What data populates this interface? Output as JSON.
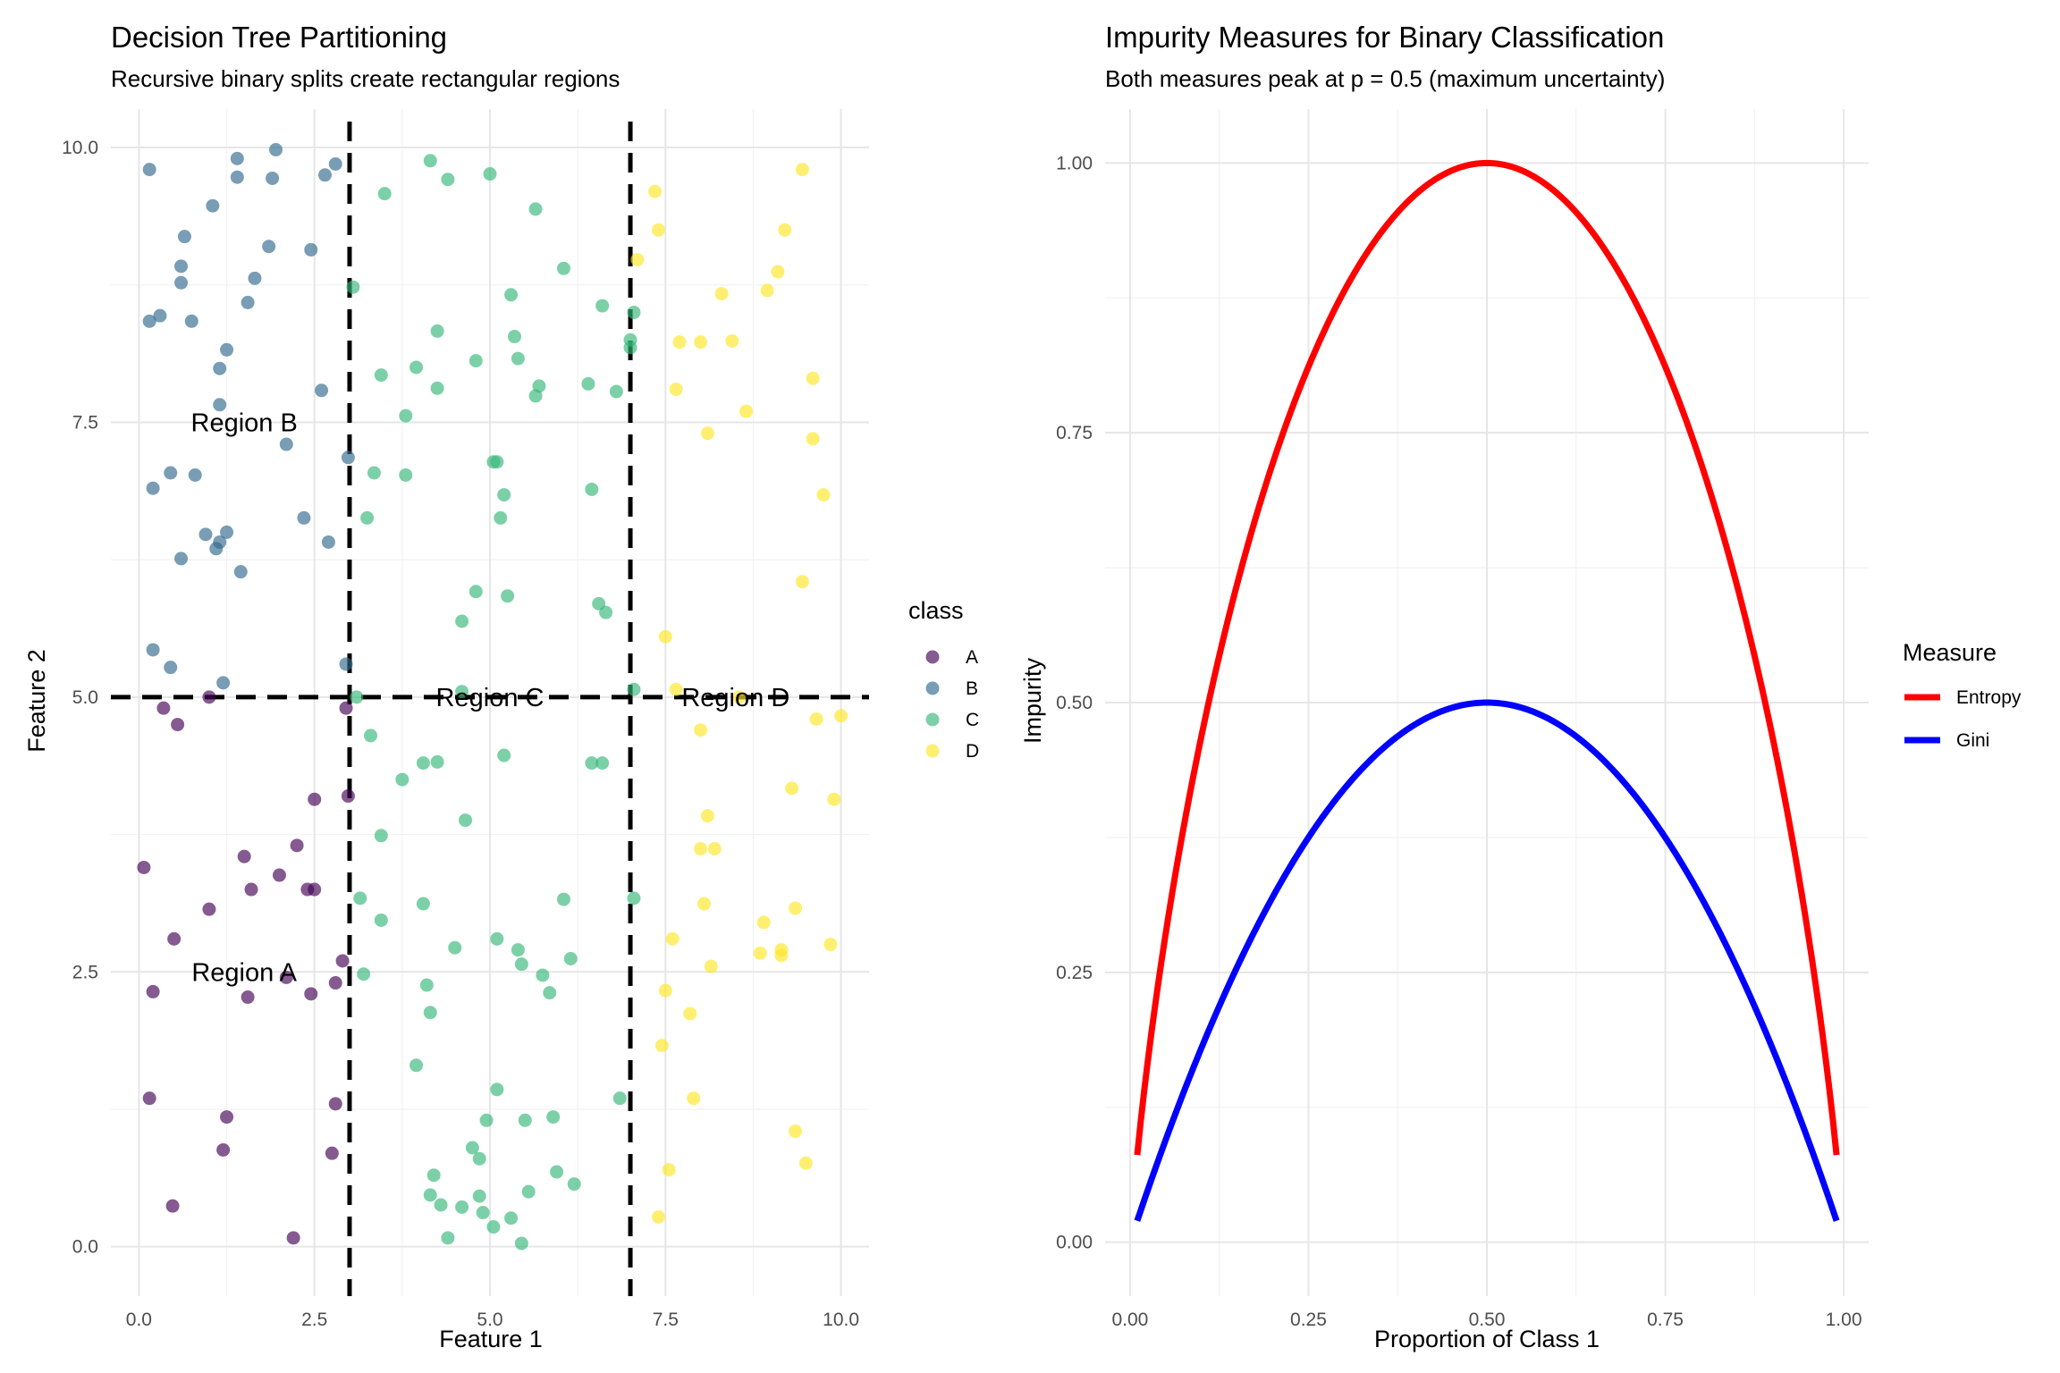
{
  "chart_data": [
    {
      "type": "scatter",
      "title": "Decision Tree Partitioning",
      "subtitle": "Recursive binary splits create rectangular regions",
      "xlabel": "Feature 1",
      "ylabel": "Feature 2",
      "xlim": [
        -0.4,
        10.4
      ],
      "ylim": [
        -0.45,
        10.35
      ],
      "xticks": [
        "0.0",
        "2.5",
        "5.0",
        "7.5",
        "10.0"
      ],
      "yticks": [
        "0.0",
        "2.5",
        "5.0",
        "7.5",
        "10.0"
      ],
      "grid": true,
      "legend": {
        "title": "class",
        "position": "right",
        "entries": [
          "A",
          "B",
          "C",
          "D"
        ]
      },
      "class_colors": {
        "A": "#440154",
        "B": "#31688E",
        "C": "#35B779",
        "D": "#FDE725"
      },
      "split_lines": [
        {
          "orientation": "vertical",
          "value": 3
        },
        {
          "orientation": "vertical",
          "value": 7
        },
        {
          "orientation": "horizontal",
          "value": 5
        }
      ],
      "annotations": [
        {
          "label": "Region A",
          "x": 1.5,
          "y": 2.5
        },
        {
          "label": "Region B",
          "x": 1.5,
          "y": 7.5
        },
        {
          "label": "Region C",
          "x": 5.0,
          "y": 5.0
        },
        {
          "label": "Region D",
          "x": 8.5,
          "y": 5.0
        }
      ],
      "series": [
        {
          "name": "A",
          "points": [
            [
              0.07,
              3.45
            ],
            [
              0.2,
              2.32
            ],
            [
              0.15,
              1.35
            ],
            [
              0.35,
              4.9
            ],
            [
              0.55,
              4.75
            ],
            [
              0.5,
              2.8
            ],
            [
              0.48,
              0.37
            ],
            [
              1.0,
              3.07
            ],
            [
              1.25,
              1.18
            ],
            [
              1.2,
              0.88
            ],
            [
              1.5,
              3.55
            ],
            [
              1.6,
              3.25
            ],
            [
              1.55,
              2.27
            ],
            [
              2.0,
              3.38
            ],
            [
              2.1,
              2.45
            ],
            [
              2.2,
              0.08
            ],
            [
              2.25,
              3.65
            ],
            [
              2.4,
              3.25
            ],
            [
              2.45,
              2.3
            ],
            [
              2.5,
              4.07
            ],
            [
              2.5,
              3.25
            ],
            [
              2.8,
              1.3
            ],
            [
              2.75,
              0.85
            ],
            [
              2.8,
              2.4
            ],
            [
              2.9,
              2.6
            ],
            [
              2.98,
              4.1
            ],
            [
              2.95,
              4.9
            ],
            [
              1.0,
              5.0
            ]
          ]
        },
        {
          "name": "B",
          "points": [
            [
              0.15,
              9.8
            ],
            [
              0.15,
              8.42
            ],
            [
              0.3,
              8.47
            ],
            [
              0.2,
              6.9
            ],
            [
              0.2,
              5.43
            ],
            [
              0.45,
              5.27
            ],
            [
              0.45,
              7.04
            ],
            [
              0.6,
              8.92
            ],
            [
              0.6,
              8.77
            ],
            [
              0.65,
              9.19
            ],
            [
              0.6,
              6.26
            ],
            [
              0.75,
              8.42
            ],
            [
              0.8,
              7.02
            ],
            [
              0.95,
              6.48
            ],
            [
              1.05,
              9.47
            ],
            [
              1.15,
              7.99
            ],
            [
              1.15,
              7.66
            ],
            [
              1.15,
              6.41
            ],
            [
              1.1,
              6.35
            ],
            [
              1.2,
              5.13
            ],
            [
              1.25,
              8.16
            ],
            [
              1.25,
              6.5
            ],
            [
              1.4,
              9.9
            ],
            [
              1.4,
              9.73
            ],
            [
              1.45,
              6.14
            ],
            [
              1.55,
              8.59
            ],
            [
              1.65,
              8.81
            ],
            [
              1.85,
              9.1
            ],
            [
              1.9,
              9.72
            ],
            [
              1.95,
              9.98
            ],
            [
              2.1,
              7.3
            ],
            [
              2.35,
              6.63
            ],
            [
              2.45,
              9.07
            ],
            [
              2.6,
              7.79
            ],
            [
              2.65,
              9.75
            ],
            [
              2.7,
              6.41
            ],
            [
              2.8,
              9.85
            ],
            [
              2.95,
              5.3
            ],
            [
              2.98,
              7.18
            ]
          ]
        },
        {
          "name": "C",
          "points": [
            [
              3.05,
              8.73
            ],
            [
              3.1,
              5.0
            ],
            [
              3.15,
              3.17
            ],
            [
              3.2,
              2.48
            ],
            [
              3.25,
              6.63
            ],
            [
              3.3,
              4.65
            ],
            [
              3.35,
              7.04
            ],
            [
              3.45,
              7.93
            ],
            [
              3.45,
              2.97
            ],
            [
              3.5,
              9.58
            ],
            [
              3.45,
              3.74
            ],
            [
              3.75,
              4.25
            ],
            [
              3.8,
              7.56
            ],
            [
              3.8,
              7.02
            ],
            [
              3.95,
              8.0
            ],
            [
              3.95,
              1.65
            ],
            [
              4.05,
              4.4
            ],
            [
              4.05,
              3.12
            ],
            [
              4.1,
              2.38
            ],
            [
              4.15,
              2.13
            ],
            [
              4.15,
              9.88
            ],
            [
              4.15,
              0.47
            ],
            [
              4.2,
              0.65
            ],
            [
              4.25,
              8.33
            ],
            [
              4.25,
              7.81
            ],
            [
              4.25,
              4.41
            ],
            [
              4.3,
              0.38
            ],
            [
              4.4,
              9.71
            ],
            [
              4.4,
              0.08
            ],
            [
              4.5,
              2.72
            ],
            [
              4.6,
              5.69
            ],
            [
              4.6,
              5.05
            ],
            [
              4.6,
              0.36
            ],
            [
              4.65,
              3.88
            ],
            [
              4.75,
              0.9
            ],
            [
              4.8,
              5.96
            ],
            [
              4.8,
              8.06
            ],
            [
              4.85,
              0.46
            ],
            [
              4.85,
              0.8
            ],
            [
              4.9,
              0.31
            ],
            [
              4.95,
              1.15
            ],
            [
              5.0,
              9.76
            ],
            [
              5.05,
              7.14
            ],
            [
              5.05,
              0.18
            ],
            [
              5.1,
              7.14
            ],
            [
              5.1,
              2.8
            ],
            [
              5.1,
              1.43
            ],
            [
              5.15,
              6.63
            ],
            [
              5.2,
              4.47
            ],
            [
              5.2,
              6.84
            ],
            [
              5.25,
              5.92
            ],
            [
              5.3,
              8.66
            ],
            [
              5.3,
              0.26
            ],
            [
              5.35,
              8.28
            ],
            [
              5.4,
              8.08
            ],
            [
              5.4,
              2.7
            ],
            [
              5.45,
              2.57
            ],
            [
              5.45,
              0.03
            ],
            [
              5.5,
              1.15
            ],
            [
              5.55,
              0.5
            ],
            [
              5.65,
              7.74
            ],
            [
              5.65,
              9.44
            ],
            [
              5.7,
              7.83
            ],
            [
              5.75,
              2.47
            ],
            [
              5.85,
              2.31
            ],
            [
              5.9,
              1.18
            ],
            [
              5.95,
              0.68
            ],
            [
              6.05,
              3.16
            ],
            [
              6.05,
              8.9
            ],
            [
              6.15,
              2.62
            ],
            [
              6.2,
              0.57
            ],
            [
              6.4,
              7.85
            ],
            [
              6.45,
              6.89
            ],
            [
              6.45,
              4.4
            ],
            [
              6.55,
              5.85
            ],
            [
              6.6,
              8.56
            ],
            [
              6.6,
              4.4
            ],
            [
              6.65,
              5.77
            ],
            [
              6.8,
              7.78
            ],
            [
              6.85,
              1.35
            ],
            [
              7.0,
              8.25
            ],
            [
              7.0,
              8.18
            ],
            [
              7.05,
              8.5
            ],
            [
              7.05,
              3.17
            ],
            [
              7.05,
              5.07
            ]
          ]
        },
        {
          "name": "D",
          "points": [
            [
              7.1,
              8.98
            ],
            [
              7.35,
              9.6
            ],
            [
              7.4,
              9.25
            ],
            [
              7.45,
              1.83
            ],
            [
              7.4,
              0.27
            ],
            [
              7.5,
              5.55
            ],
            [
              7.5,
              2.33
            ],
            [
              7.55,
              0.7
            ],
            [
              7.6,
              2.8
            ],
            [
              7.65,
              5.07
            ],
            [
              7.65,
              7.8
            ],
            [
              7.7,
              8.23
            ],
            [
              7.85,
              2.12
            ],
            [
              7.9,
              1.35
            ],
            [
              8.0,
              8.23
            ],
            [
              8.0,
              4.7
            ],
            [
              8.0,
              3.62
            ],
            [
              8.05,
              3.12
            ],
            [
              8.1,
              3.92
            ],
            [
              8.1,
              7.4
            ],
            [
              8.15,
              2.55
            ],
            [
              8.2,
              3.62
            ],
            [
              8.3,
              8.67
            ],
            [
              8.45,
              8.24
            ],
            [
              8.55,
              5.0
            ],
            [
              8.65,
              7.6
            ],
            [
              8.85,
              2.67
            ],
            [
              8.9,
              2.95
            ],
            [
              8.95,
              8.7
            ],
            [
              9.1,
              8.87
            ],
            [
              9.15,
              2.7
            ],
            [
              9.15,
              2.65
            ],
            [
              9.2,
              9.25
            ],
            [
              9.3,
              4.17
            ],
            [
              9.35,
              3.08
            ],
            [
              9.35,
              1.05
            ],
            [
              9.45,
              6.05
            ],
            [
              9.45,
              9.8
            ],
            [
              9.5,
              0.76
            ],
            [
              9.6,
              7.9
            ],
            [
              9.6,
              7.35
            ],
            [
              9.65,
              4.8
            ],
            [
              9.75,
              6.84
            ],
            [
              9.85,
              2.75
            ],
            [
              9.9,
              4.07
            ],
            [
              10.0,
              4.83
            ]
          ]
        }
      ]
    },
    {
      "type": "line",
      "title": "Impurity Measures for Binary Classification",
      "subtitle": "Both measures peak at p = 0.5 (maximum uncertainty)",
      "xlabel": "Proportion of Class 1",
      "ylabel": "Impurity",
      "xlim": [
        -0.035,
        1.035
      ],
      "ylim": [
        -0.05,
        1.05
      ],
      "xticks": [
        "0.00",
        "0.25",
        "0.50",
        "0.75",
        "1.00"
      ],
      "yticks": [
        "0.00",
        "0.25",
        "0.50",
        "0.75",
        "1.00"
      ],
      "grid": true,
      "legend": {
        "title": "Measure",
        "position": "right"
      },
      "series": [
        {
          "name": "Entropy",
          "color": "#FF0000",
          "x": [
            0.01,
            0.02,
            0.05,
            0.1,
            0.15,
            0.2,
            0.25,
            0.3,
            0.35,
            0.4,
            0.45,
            0.5,
            0.55,
            0.6,
            0.65,
            0.7,
            0.75,
            0.8,
            0.85,
            0.9,
            0.95,
            0.98,
            0.99
          ],
          "y": [
            0.0808,
            0.1414,
            0.2864,
            0.469,
            0.6098,
            0.7219,
            0.8113,
            0.8813,
            0.9341,
            0.971,
            0.9928,
            1.0,
            0.9928,
            0.971,
            0.9341,
            0.8813,
            0.8113,
            0.7219,
            0.6098,
            0.469,
            0.2864,
            0.1414,
            0.0808
          ]
        },
        {
          "name": "Gini",
          "color": "#0000FF",
          "x": [
            0.01,
            0.02,
            0.05,
            0.1,
            0.15,
            0.2,
            0.25,
            0.3,
            0.35,
            0.4,
            0.45,
            0.5,
            0.55,
            0.6,
            0.65,
            0.7,
            0.75,
            0.8,
            0.85,
            0.9,
            0.95,
            0.98,
            0.99
          ],
          "y": [
            0.0198,
            0.0392,
            0.095,
            0.18,
            0.255,
            0.32,
            0.375,
            0.42,
            0.455,
            0.48,
            0.495,
            0.5,
            0.495,
            0.48,
            0.455,
            0.42,
            0.375,
            0.32,
            0.255,
            0.18,
            0.095,
            0.0392,
            0.0198
          ]
        }
      ]
    }
  ]
}
